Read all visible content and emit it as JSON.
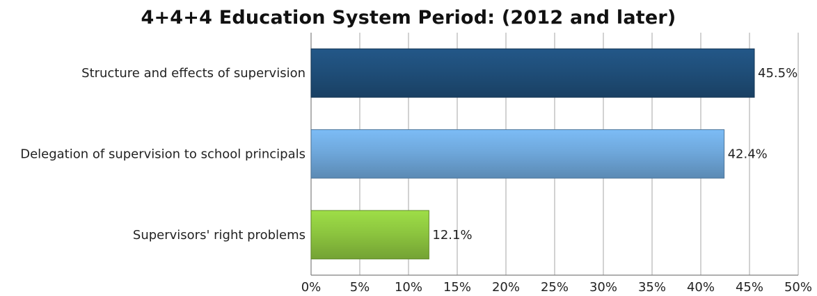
{
  "chart_data": {
    "type": "bar",
    "orientation": "horizontal",
    "title": "4+4+4 Education System Period: (2012 and later)",
    "categories": [
      "Structure and effects of supervision",
      "Delegation of supervision to school principals",
      "Supervisors' right problems"
    ],
    "values": [
      45.5,
      42.4,
      12.1
    ],
    "value_labels": [
      "45.5%",
      "42.4%",
      "12.1%"
    ],
    "bar_colors": [
      "#1f4e79",
      "#6fa8dc",
      "#8dc63f"
    ],
    "xlim": [
      0,
      50
    ],
    "xticks": [
      0,
      5,
      10,
      15,
      20,
      25,
      30,
      35,
      40,
      45,
      50
    ],
    "xtick_labels": [
      "0%",
      "5%",
      "10%",
      "15%",
      "20%",
      "25%",
      "30%",
      "35%",
      "40%",
      "45%",
      "50%"
    ],
    "xlabel": "",
    "ylabel": "",
    "grid": true,
    "legend": "none"
  }
}
